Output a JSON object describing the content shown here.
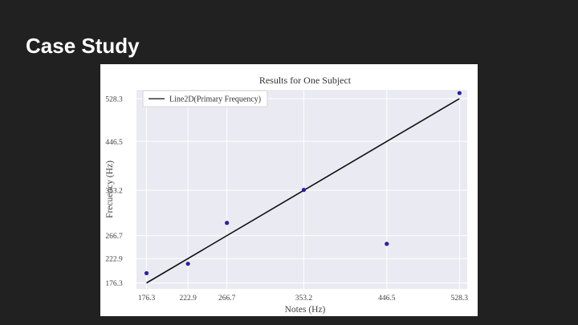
{
  "slide": {
    "title": "Case Study"
  },
  "chart_data": {
    "type": "scatter",
    "title": "Results for One Subject",
    "xlabel": "Notes (Hz)",
    "ylabel": "Frecuency (Hz)",
    "xticks": [
      "176.3",
      "222.9",
      "266.7",
      "353.2",
      "446.5",
      "528.3"
    ],
    "yticks": [
      "528.3",
      "446.5",
      "353.2",
      "266.7",
      "222.9",
      "176.3"
    ],
    "x_tick_values": [
      176.3,
      222.9,
      266.7,
      353.2,
      446.5,
      528.3
    ],
    "y_tick_values": [
      528.3,
      446.5,
      353.2,
      266.7,
      222.9,
      176.3
    ],
    "xlim": [
      165,
      537
    ],
    "ylim": [
      165,
      545
    ],
    "grid": true,
    "legend_position": "top-left",
    "series": [
      {
        "name": "Line2D(Primary Frequency)",
        "kind": "line",
        "color": "#111111",
        "x": [
          176.3,
          528.3
        ],
        "y": [
          176.3,
          528.3
        ]
      },
      {
        "kind": "scatter",
        "color": "#2d1fa3",
        "x": [
          176.3,
          222.9,
          266.7,
          353.2,
          446.5,
          528.3
        ],
        "y": [
          195.0,
          213.0,
          291.0,
          354.0,
          251.0,
          539.0
        ]
      }
    ]
  }
}
